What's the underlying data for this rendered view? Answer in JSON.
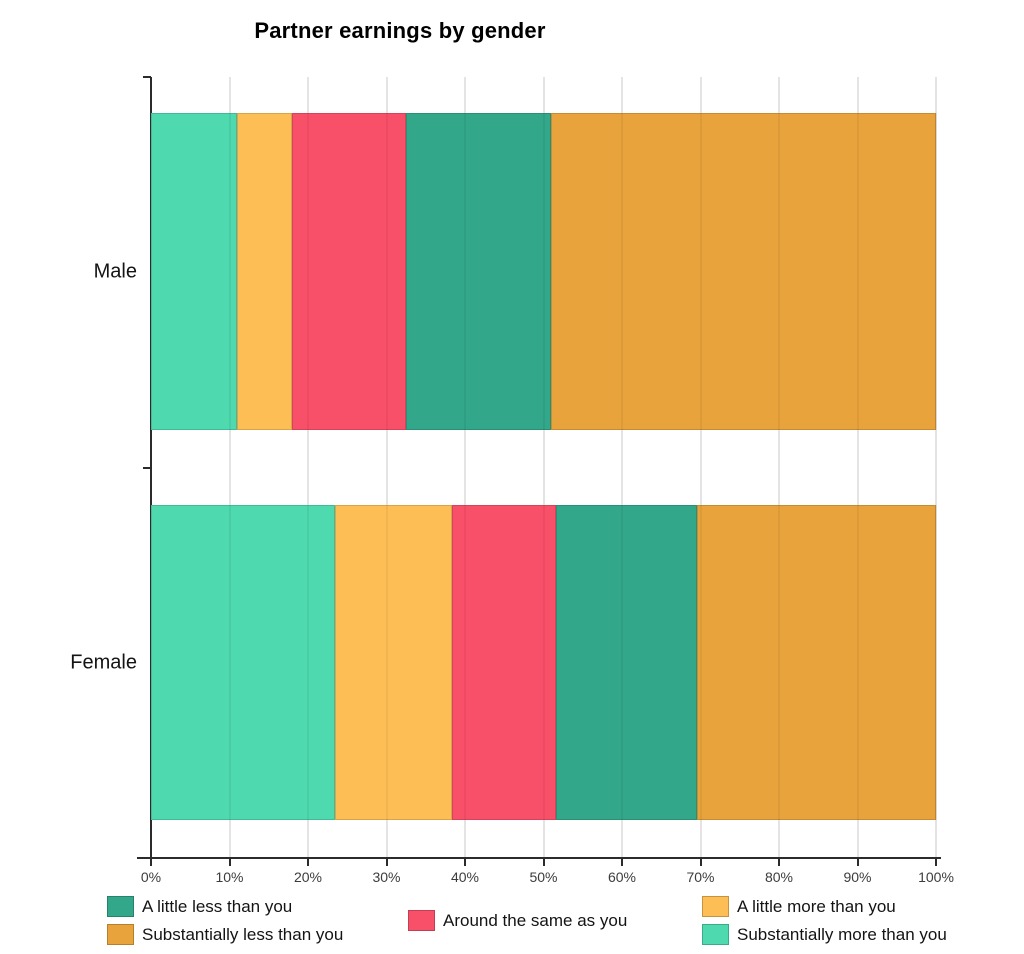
{
  "chart_data": {
    "type": "bar",
    "orientation": "horizontal",
    "stacked": true,
    "title": "Partner earnings by gender",
    "categories": [
      "Male",
      "Female"
    ],
    "series": [
      {
        "name": "Substantially more than you",
        "color": "#4ED9AF",
        "values": [
          11.0,
          23.4
        ]
      },
      {
        "name": "A little more than you",
        "color": "#FDBE55",
        "values": [
          7.0,
          14.9
        ]
      },
      {
        "name": "Around the same as you",
        "color": "#F95069",
        "values": [
          14.5,
          13.3
        ]
      },
      {
        "name": "A little less than you",
        "color": "#33A789",
        "values": [
          18.5,
          18.0
        ]
      },
      {
        "name": "Substantially less than you",
        "color": "#E8A33C",
        "values": [
          49.0,
          30.4
        ]
      }
    ],
    "x_axis": {
      "tick_labels": [
        "0%",
        "10%",
        "20%",
        "30%",
        "40%",
        "50%",
        "60%",
        "70%",
        "80%",
        "90%",
        "100%"
      ],
      "range": [
        0,
        100
      ],
      "grid": true
    },
    "legend": {
      "position": "bottom",
      "order": [
        "A little less than you",
        "Substantially less than you",
        "Around the same as you",
        "A little more than you",
        "Substantially more than you"
      ]
    },
    "colors": {
      "grid": "#e4e4e4",
      "axis": "#2b2b2b",
      "text": "#141414",
      "tick_text": "#3c3c3c"
    }
  }
}
